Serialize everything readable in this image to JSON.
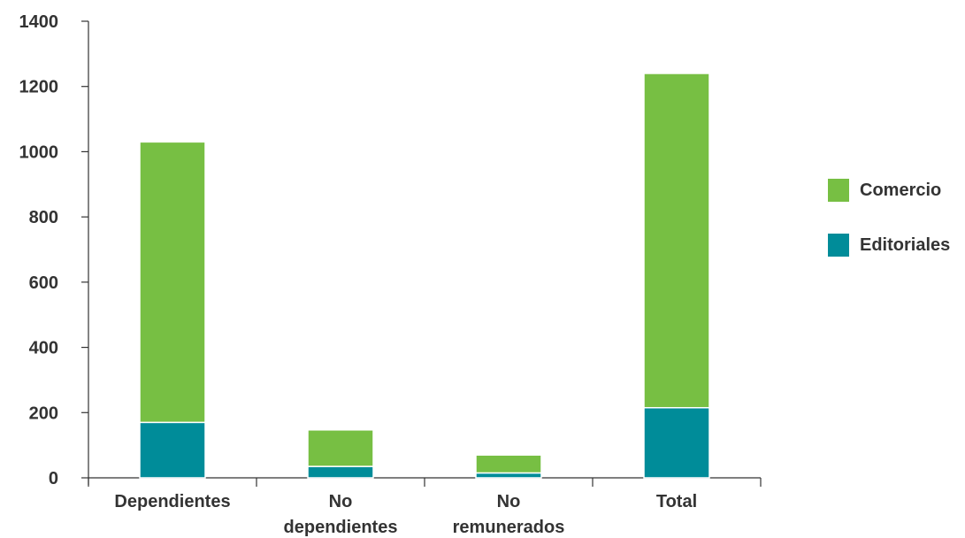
{
  "chart_data": {
    "type": "bar",
    "stacked": true,
    "categories": [
      [
        "Dependientes"
      ],
      [
        "No",
        "dependientes"
      ],
      [
        "No",
        "remunerados"
      ],
      [
        "Total"
      ]
    ],
    "series": [
      {
        "name": "Editoriales",
        "color": "#008c99",
        "values": [
          170,
          35,
          15,
          215
        ]
      },
      {
        "name": "Comercio",
        "color": "#77bf43",
        "values": [
          860,
          112,
          55,
          1025
        ]
      }
    ],
    "ylim": [
      0,
      1400
    ],
    "yticks": [
      0,
      200,
      400,
      600,
      800,
      1000,
      1200,
      1400
    ],
    "grid": false,
    "legend_position": "right",
    "title": "",
    "xlabel": "",
    "ylabel": ""
  },
  "legend": {
    "items": [
      {
        "label": "Comercio",
        "color": "#77bf43"
      },
      {
        "label": "Editoriales",
        "color": "#008c99"
      }
    ]
  }
}
